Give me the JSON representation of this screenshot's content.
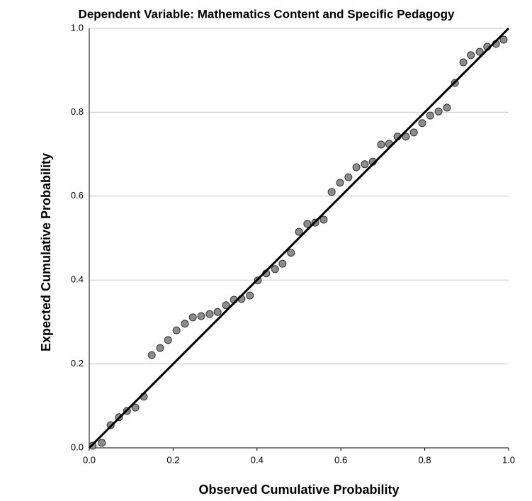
{
  "chart_data": {
    "type": "scatter",
    "title": "Dependent Variable: Mathematics Content and Specific Pedagogy",
    "xlabel": "Observed Cumulative Probability",
    "ylabel": "Expected Cumulative Probability",
    "x": [
      0.008,
      0.03,
      0.051,
      0.071,
      0.09,
      0.11,
      0.13,
      0.149,
      0.169,
      0.188,
      0.208,
      0.228,
      0.247,
      0.267,
      0.287,
      0.306,
      0.326,
      0.345,
      0.363,
      0.383,
      0.402,
      0.422,
      0.443,
      0.461,
      0.481,
      0.5,
      0.52,
      0.539,
      0.559,
      0.578,
      0.598,
      0.618,
      0.637,
      0.657,
      0.676,
      0.696,
      0.715,
      0.735,
      0.755,
      0.774,
      0.794,
      0.813,
      0.833,
      0.853,
      0.872,
      0.892,
      0.91,
      0.931,
      0.949,
      0.97,
      0.988
    ],
    "values": [
      0.005,
      0.012,
      0.054,
      0.073,
      0.088,
      0.096,
      0.122,
      0.221,
      0.238,
      0.257,
      0.28,
      0.296,
      0.311,
      0.314,
      0.319,
      0.324,
      0.34,
      0.353,
      0.355,
      0.363,
      0.399,
      0.416,
      0.426,
      0.439,
      0.465,
      0.515,
      0.534,
      0.537,
      0.544,
      0.61,
      0.632,
      0.645,
      0.669,
      0.676,
      0.682,
      0.723,
      0.725,
      0.742,
      0.742,
      0.752,
      0.774,
      0.792,
      0.802,
      0.811,
      0.87,
      0.919,
      0.936,
      0.944,
      0.956,
      0.963,
      0.973
    ],
    "color": "#8c8c8c",
    "reference_line": true,
    "xlim": [
      0,
      1
    ],
    "ylim": [
      0,
      1
    ],
    "xticks": [
      {
        "value": 0,
        "label": "0.0"
      },
      0.2,
      0.4,
      0.6,
      0.8,
      {
        "value": 1,
        "label": "1.0"
      }
    ],
    "yticks": [
      {
        "value": 0,
        "label": "0.0"
      },
      0.2,
      0.4,
      0.6,
      0.8,
      {
        "value": 1,
        "label": "1.0"
      }
    ],
    "grid": true
  }
}
